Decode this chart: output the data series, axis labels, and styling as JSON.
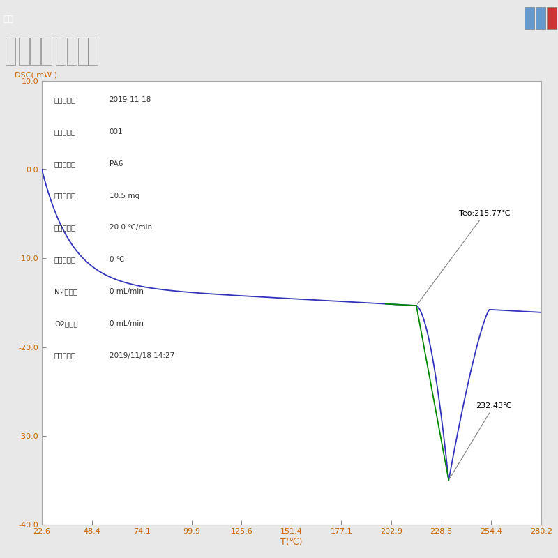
{
  "ylabel": "DSC( mW )",
  "xlabel": "T(℃)",
  "xlim": [
    22.6,
    280.2
  ],
  "ylim": [
    -40.0,
    10.0
  ],
  "xticks": [
    22.6,
    48.4,
    74.1,
    99.9,
    125.6,
    151.4,
    177.1,
    202.9,
    228.6,
    254.4,
    280.2
  ],
  "yticks": [
    10.0,
    0.0,
    -10.0,
    -20.0,
    -30.0,
    -40.0
  ],
  "info_lines": [
    [
      "文件名称：",
      "2019-11-18"
    ],
    [
      "操作人员：",
      "001"
    ],
    [
      "样品名称：",
      "PA6"
    ],
    [
      "样品重量：",
      "10.5 mg"
    ],
    [
      "升温速率：",
      "20.0 ℃/min"
    ],
    [
      "恒温温度：",
      "0 ℃"
    ],
    [
      "N2流量：",
      "0 mL/min"
    ],
    [
      "O2流量：",
      "0 mL/min"
    ],
    [
      "实验时间：",
      "2019/11/18 14:27"
    ]
  ],
  "annotation_teo": "Teo:215.77℃",
  "annotation_peak": "232.43℃",
  "onset_x": 215.77,
  "peak_x": 232.43,
  "peak_y": -35.5,
  "bg_outer": "#e8e8e8",
  "bg_titlebar": "#6666aa",
  "bg_toolbar": "#d0d0d8",
  "bg_plot_area": "#d8d8d8",
  "plot_bg": "#ffffff",
  "curve_color": "#3333bb",
  "green_color": "#008800",
  "info_key_color": "#333333",
  "info_val_color": "#333333",
  "ylabel_color": "#cc6600",
  "tick_color": "#cc6600"
}
